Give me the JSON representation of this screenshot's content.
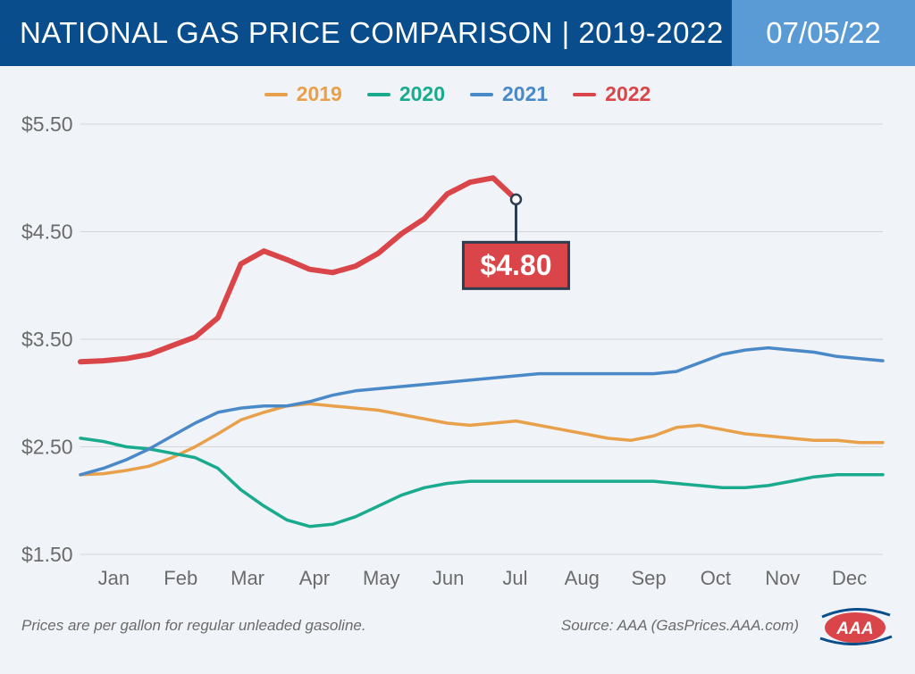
{
  "header": {
    "title": "NATIONAL GAS PRICE COMPARISON | 2019-2022",
    "date": "07/05/22",
    "title_bg": "#0a4d8c",
    "date_bg": "#5a9bd5",
    "text_color": "#ffffff"
  },
  "legend": {
    "items": [
      {
        "label": "2019",
        "color": "#e8a04a"
      },
      {
        "label": "2020",
        "color": "#1aab8f"
      },
      {
        "label": "2021",
        "color": "#4a89c8"
      },
      {
        "label": "2022",
        "color": "#d94548"
      }
    ]
  },
  "chart": {
    "type": "line",
    "background_color": "#f0f3f7",
    "grid_color": "#d5d5d5",
    "axis_label_color": "#6b6b6b",
    "axis_fontsize": 22,
    "y": {
      "min": 1.5,
      "max": 5.5,
      "ticks": [
        1.5,
        2.5,
        3.5,
        4.5,
        5.5
      ],
      "tick_labels": [
        "$1.50",
        "$2.50",
        "$3.50",
        "$4.50",
        "$5.50"
      ],
      "label_prefix": "$"
    },
    "x": {
      "months": [
        "Jan",
        "Feb",
        "Mar",
        "Apr",
        "May",
        "Jun",
        "Jul",
        "Aug",
        "Sep",
        "Oct",
        "Nov",
        "Dec"
      ]
    },
    "series": [
      {
        "name": "2019",
        "color": "#e8a04a",
        "width": 3.5,
        "values": [
          2.24,
          2.25,
          2.28,
          2.32,
          2.4,
          2.5,
          2.62,
          2.75,
          2.82,
          2.88,
          2.9,
          2.88,
          2.86,
          2.84,
          2.8,
          2.76,
          2.72,
          2.7,
          2.72,
          2.74,
          2.7,
          2.66,
          2.62,
          2.58,
          2.56,
          2.6,
          2.68,
          2.7,
          2.66,
          2.62,
          2.6,
          2.58,
          2.56,
          2.56,
          2.54,
          2.54
        ]
      },
      {
        "name": "2020",
        "color": "#1aab8f",
        "width": 3.5,
        "values": [
          2.58,
          2.55,
          2.5,
          2.48,
          2.44,
          2.4,
          2.3,
          2.1,
          1.95,
          1.82,
          1.76,
          1.78,
          1.85,
          1.95,
          2.05,
          2.12,
          2.16,
          2.18,
          2.18,
          2.18,
          2.18,
          2.18,
          2.18,
          2.18,
          2.18,
          2.18,
          2.16,
          2.14,
          2.12,
          2.12,
          2.14,
          2.18,
          2.22,
          2.24,
          2.24,
          2.24
        ]
      },
      {
        "name": "2021",
        "color": "#4a89c8",
        "width": 3.5,
        "values": [
          2.24,
          2.3,
          2.38,
          2.48,
          2.6,
          2.72,
          2.82,
          2.86,
          2.88,
          2.88,
          2.92,
          2.98,
          3.02,
          3.04,
          3.06,
          3.08,
          3.1,
          3.12,
          3.14,
          3.16,
          3.18,
          3.18,
          3.18,
          3.18,
          3.18,
          3.18,
          3.2,
          3.28,
          3.36,
          3.4,
          3.42,
          3.4,
          3.38,
          3.34,
          3.32,
          3.3
        ]
      },
      {
        "name": "2022",
        "color": "#d94548",
        "width": 6,
        "values": [
          3.29,
          3.3,
          3.32,
          3.36,
          3.44,
          3.52,
          3.7,
          4.2,
          4.32,
          4.24,
          4.15,
          4.12,
          4.18,
          4.3,
          4.48,
          4.62,
          4.85,
          4.96,
          5.0,
          4.8
        ]
      }
    ],
    "callout": {
      "value_label": "$4.80",
      "series": "2022",
      "point_index": 19,
      "box_fill": "#d94548",
      "box_stroke": "#2d3e50",
      "text_color": "#ffffff"
    }
  },
  "footer": {
    "note": "Prices are per gallon for regular unleaded gasoline.",
    "source": "Source: AAA (GasPrices.AAA.com)",
    "logo_text": "AAA",
    "logo_red": "#d94548",
    "logo_blue": "#0a4d8c"
  }
}
